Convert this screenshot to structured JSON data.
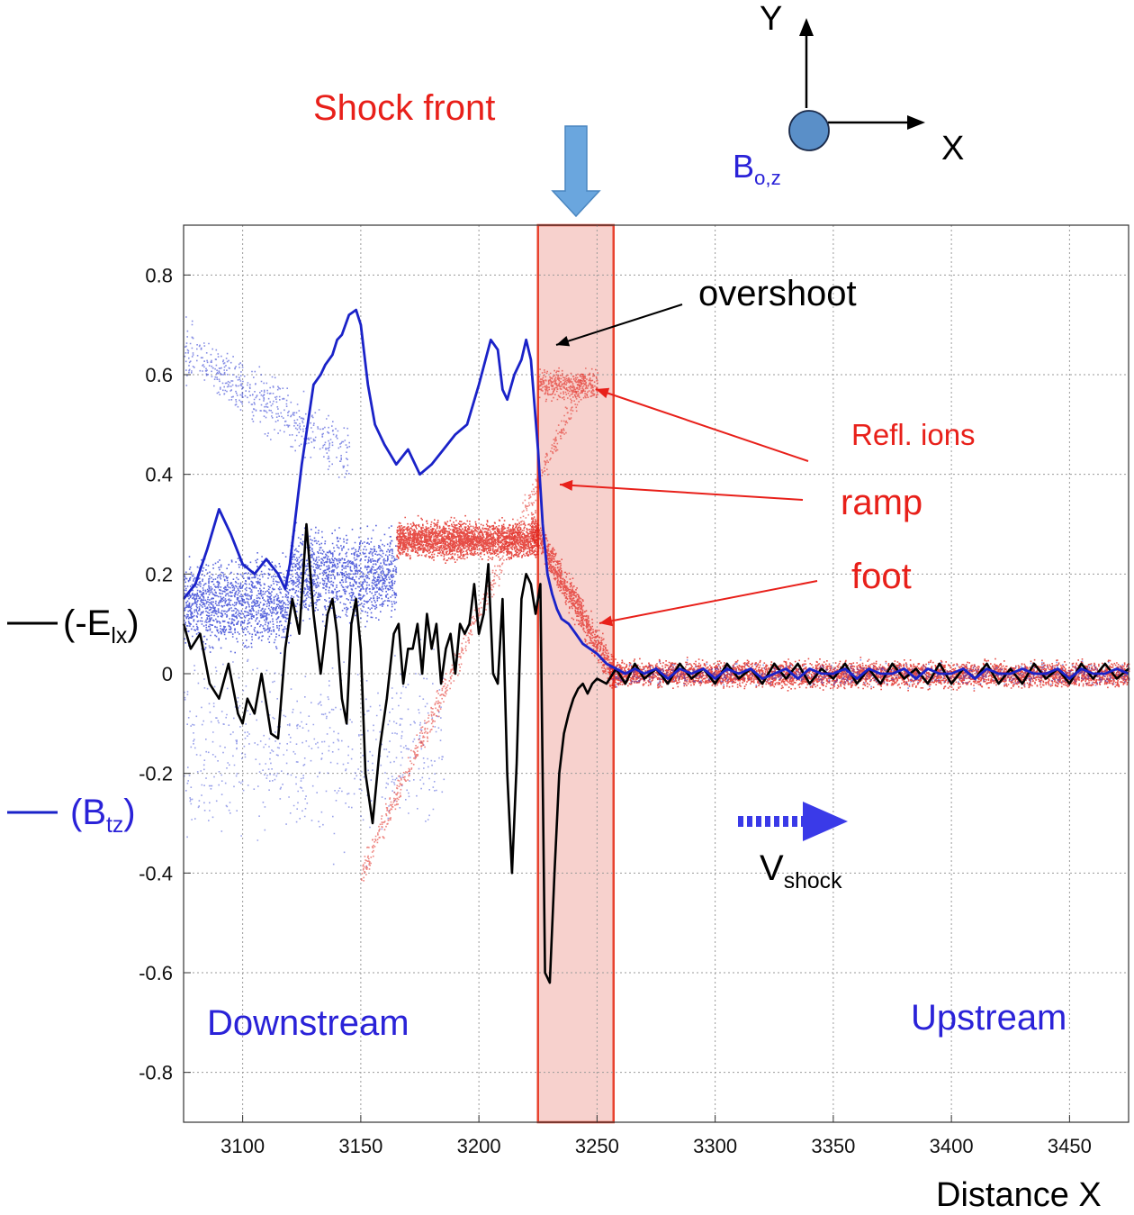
{
  "chart_data": {
    "type": "line",
    "xlabel": "Distance X",
    "ylabel": "",
    "xlim": [
      3075,
      3475
    ],
    "ylim": [
      -0.9,
      0.9
    ],
    "x_ticks": [
      3100,
      3150,
      3200,
      3250,
      3300,
      3350,
      3400,
      3450
    ],
    "y_ticks": [
      0.8,
      0.6,
      0.4,
      0.2,
      0,
      -0.2,
      -0.4,
      -0.6,
      -0.8
    ],
    "grid": true,
    "shaded_region": {
      "x": [
        3225,
        3257
      ],
      "color": "#f6c9c4",
      "edge_color": "#e8432f"
    },
    "series": [
      {
        "legend_prefix": "(-E",
        "legend_sub": "lx",
        "legend_suffix": ")",
        "color": "#000000",
        "x": [
          3075,
          3078,
          3082,
          3086,
          3090,
          3094,
          3098,
          3100,
          3102,
          3105,
          3108,
          3112,
          3115,
          3118,
          3121,
          3124,
          3127,
          3130,
          3133,
          3136,
          3138,
          3140,
          3142,
          3144,
          3146,
          3148,
          3150,
          3152,
          3155,
          3158,
          3161,
          3164,
          3166,
          3168,
          3170,
          3172,
          3174,
          3176,
          3178,
          3180,
          3182,
          3184,
          3186,
          3188,
          3190,
          3192,
          3194,
          3196,
          3198,
          3200,
          3202,
          3204,
          3206,
          3208,
          3210,
          3212,
          3214,
          3216,
          3218,
          3220,
          3222,
          3224,
          3226,
          3228,
          3230,
          3232,
          3234,
          3236,
          3238,
          3240,
          3242,
          3244,
          3246,
          3248,
          3250,
          3254,
          3258,
          3262,
          3266,
          3270,
          3275,
          3280,
          3285,
          3290,
          3295,
          3300,
          3305,
          3310,
          3315,
          3320,
          3325,
          3330,
          3335,
          3340,
          3345,
          3350,
          3355,
          3360,
          3365,
          3370,
          3375,
          3380,
          3385,
          3390,
          3395,
          3400,
          3405,
          3410,
          3415,
          3420,
          3425,
          3430,
          3435,
          3440,
          3445,
          3450,
          3455,
          3460,
          3465,
          3470,
          3475
        ],
        "y": [
          0.1,
          0.05,
          0.08,
          -0.02,
          -0.05,
          0.02,
          -0.08,
          -0.1,
          -0.05,
          -0.08,
          0.0,
          -0.12,
          -0.13,
          0.05,
          0.15,
          0.08,
          0.3,
          0.12,
          0.0,
          0.12,
          0.15,
          0.08,
          -0.05,
          -0.1,
          0.1,
          0.15,
          0.05,
          -0.2,
          -0.3,
          -0.15,
          -0.05,
          0.08,
          0.1,
          -0.02,
          0.05,
          0.05,
          0.1,
          0.0,
          0.12,
          0.05,
          0.1,
          -0.02,
          0.05,
          0.08,
          0.0,
          0.1,
          0.08,
          0.1,
          0.18,
          0.08,
          0.12,
          0.22,
          0.0,
          -0.02,
          0.15,
          -0.2,
          -0.4,
          -0.18,
          0.15,
          0.2,
          0.18,
          0.12,
          0.18,
          -0.6,
          -0.62,
          -0.4,
          -0.2,
          -0.12,
          -0.08,
          -0.05,
          -0.03,
          -0.02,
          -0.04,
          -0.02,
          -0.01,
          -0.02,
          0.01,
          -0.02,
          0.02,
          -0.01,
          0.01,
          -0.02,
          0.02,
          -0.01,
          0.01,
          -0.02,
          0.02,
          -0.01,
          0.01,
          -0.02,
          0.02,
          -0.01,
          0.02,
          -0.02,
          0.01,
          -0.01,
          0.02,
          -0.02,
          0.01,
          -0.02,
          0.02,
          -0.01,
          0.01,
          -0.02,
          0.02,
          -0.02,
          0.01,
          -0.01,
          0.02,
          -0.02,
          0.01,
          -0.02,
          0.02,
          -0.01,
          0.01,
          -0.02,
          0.02,
          -0.01,
          0.02,
          -0.01,
          0.01
        ]
      },
      {
        "legend_prefix": "(B",
        "legend_sub": "tz",
        "legend_suffix": ")",
        "color": "#1a22c8",
        "x": [
          3075,
          3080,
          3085,
          3090,
          3095,
          3100,
          3105,
          3110,
          3115,
          3118,
          3120,
          3125,
          3130,
          3133,
          3135,
          3138,
          3140,
          3142,
          3145,
          3148,
          3150,
          3153,
          3156,
          3160,
          3165,
          3170,
          3175,
          3180,
          3185,
          3190,
          3195,
          3200,
          3205,
          3208,
          3210,
          3212,
          3215,
          3218,
          3220,
          3222,
          3225,
          3227,
          3229,
          3231,
          3233,
          3235,
          3238,
          3241,
          3244,
          3247,
          3250,
          3254,
          3258,
          3262,
          3266,
          3270,
          3275,
          3280,
          3285,
          3290,
          3295,
          3300,
          3305,
          3310,
          3315,
          3320,
          3325,
          3330,
          3335,
          3340,
          3345,
          3350,
          3355,
          3360,
          3365,
          3370,
          3375,
          3380,
          3385,
          3390,
          3395,
          3400,
          3405,
          3410,
          3415,
          3420,
          3425,
          3430,
          3435,
          3440,
          3445,
          3450,
          3455,
          3460,
          3465,
          3470,
          3475
        ],
        "y": [
          0.15,
          0.18,
          0.25,
          0.33,
          0.28,
          0.22,
          0.2,
          0.23,
          0.2,
          0.17,
          0.22,
          0.42,
          0.58,
          0.6,
          0.62,
          0.64,
          0.67,
          0.68,
          0.72,
          0.73,
          0.7,
          0.58,
          0.5,
          0.46,
          0.42,
          0.45,
          0.4,
          0.42,
          0.45,
          0.48,
          0.5,
          0.58,
          0.67,
          0.65,
          0.57,
          0.55,
          0.6,
          0.63,
          0.67,
          0.63,
          0.45,
          0.3,
          0.2,
          0.16,
          0.13,
          0.11,
          0.1,
          0.08,
          0.06,
          0.05,
          0.04,
          0.02,
          0.01,
          0.0,
          0.01,
          0.0,
          0.01,
          -0.01,
          0.01,
          0.0,
          0.01,
          -0.01,
          0.01,
          0.0,
          0.01,
          -0.01,
          0.0,
          0.01,
          -0.01,
          0.01,
          0.0,
          0.0,
          0.01,
          -0.01,
          0.01,
          0.0,
          0.0,
          0.01,
          -0.01,
          0.01,
          0.0,
          0.0,
          0.01,
          -0.01,
          0.01,
          0.0,
          0.0,
          0.01,
          0.0,
          0.0,
          0.01,
          -0.01,
          0.01,
          0.0,
          0.0,
          0.01,
          0.0
        ]
      }
    ]
  },
  "annotations": {
    "shock_front": "Shock front",
    "overshoot": "overshoot",
    "refl_ions": "Refl. ions",
    "ramp": "ramp",
    "foot": "foot",
    "downstream": "Downstream",
    "upstream": "Upstream",
    "v_shock_main": "V",
    "v_shock_sub": "shock",
    "axis_y": "Y",
    "axis_x": "X",
    "b0_main": "B",
    "b0_sub": "o,z"
  },
  "colors": {
    "red_text": "#e8201a",
    "blue_text": "#2a22d8",
    "arrow_blue": "#6aa6de",
    "bfield_circle": "#5a8fc8",
    "red_dots": "#e02018",
    "blue_dots": "#2030d0"
  }
}
